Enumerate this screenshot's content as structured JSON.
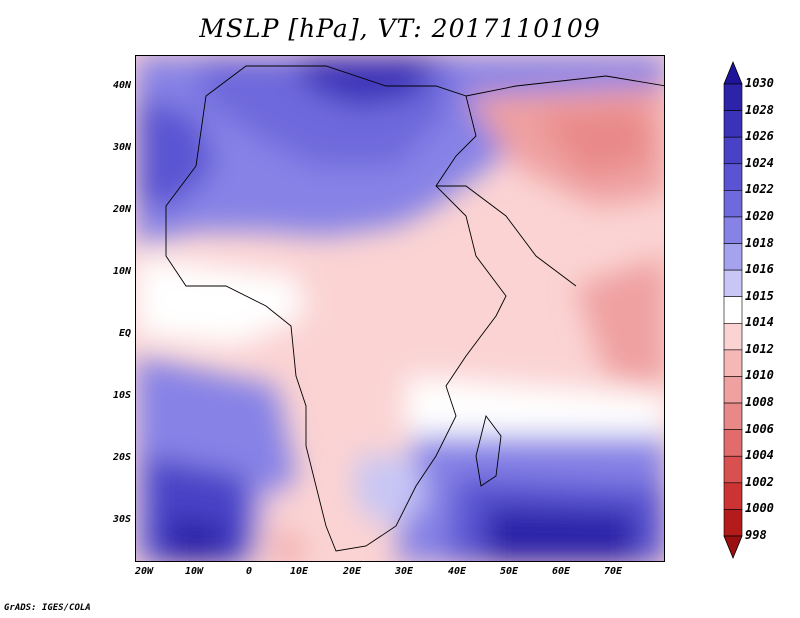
{
  "title": "MSLP [hPa], VT: 2017110109",
  "credit": "GrADS: IGES/COLA",
  "map": {
    "region": "Africa and Middle East",
    "variable": "Mean sea level pressure",
    "lon_range": [
      -25,
      80
    ],
    "lat_range": [
      -37,
      45
    ],
    "lat_labels": [
      "40N",
      "30N",
      "20N",
      "10N",
      "EQ",
      "10S",
      "20S",
      "30S"
    ],
    "lon_labels": [
      "20W",
      "10W",
      "0",
      "10E",
      "20E",
      "30E",
      "40E",
      "50E",
      "60E",
      "70E"
    ]
  },
  "colorbar": {
    "levels": [
      "1030",
      "1028",
      "1026",
      "1024",
      "1022",
      "1020",
      "1018",
      "1016",
      "1015",
      "1014",
      "1012",
      "1010",
      "1008",
      "1006",
      "1004",
      "1002",
      "1000",
      "998"
    ],
    "colors": [
      "#1e1499",
      "#2c23a8",
      "#3a32b8",
      "#4a42c6",
      "#5a54d2",
      "#6e69dc",
      "#8682e6",
      "#a5a2ee",
      "#c8c6f5",
      "#ffffff",
      "#fbd3d3",
      "#f6b7b7",
      "#efa0a0",
      "#e98888",
      "#e26c6c",
      "#d95050",
      "#cc3434",
      "#b41c1c",
      "#9a1010"
    ]
  }
}
